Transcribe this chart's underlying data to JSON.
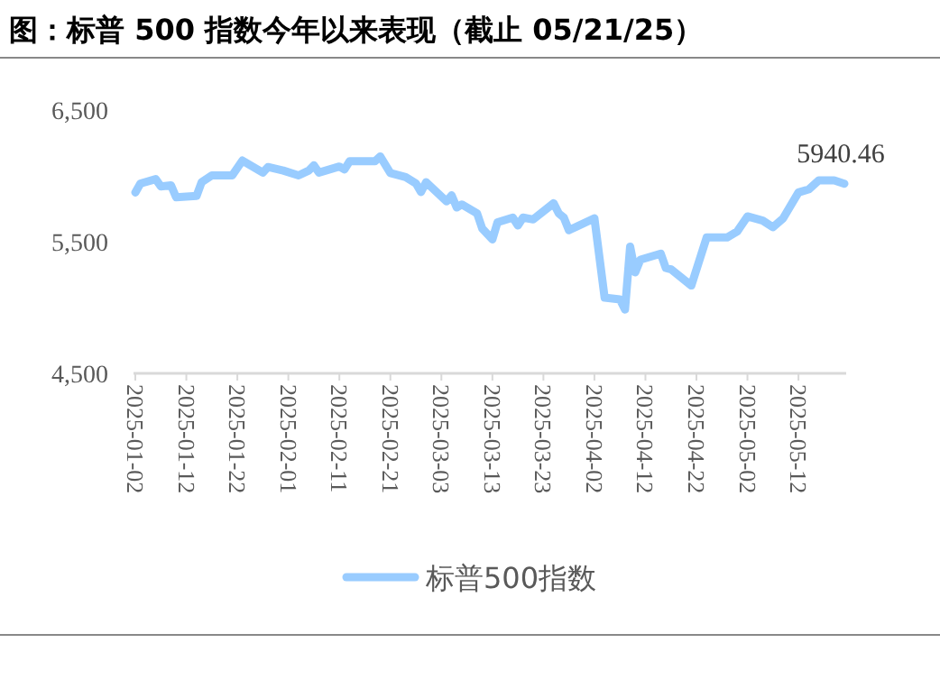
{
  "chart_data": {
    "type": "line",
    "title": "图：标普 500 指数今年以来表现（截止 05/21/25）",
    "x": [
      "2025-01-02",
      "2025-01-03",
      "2025-01-06",
      "2025-01-07",
      "2025-01-09",
      "2025-01-10",
      "2025-01-14",
      "2025-01-15",
      "2025-01-17",
      "2025-01-21",
      "2025-01-23",
      "2025-01-27",
      "2025-01-28",
      "2025-01-31",
      "2025-02-03",
      "2025-02-05",
      "2025-02-06",
      "2025-02-07",
      "2025-02-11",
      "2025-02-12",
      "2025-02-13",
      "2025-02-18",
      "2025-02-19",
      "2025-02-21",
      "2025-02-24",
      "2025-02-26",
      "2025-02-27",
      "2025-02-28",
      "2025-03-04",
      "2025-03-05",
      "2025-03-06",
      "2025-03-07",
      "2025-03-10",
      "2025-03-11",
      "2025-03-13",
      "2025-03-14",
      "2025-03-17",
      "2025-03-18",
      "2025-03-19",
      "2025-03-21",
      "2025-03-25",
      "2025-03-26",
      "2025-03-27",
      "2025-03-28",
      "2025-04-02",
      "2025-04-04",
      "2025-04-07",
      "2025-04-08",
      "2025-04-09",
      "2025-04-10",
      "2025-04-11",
      "2025-04-15",
      "2025-04-16",
      "2025-04-17",
      "2025-04-21",
      "2025-04-24",
      "2025-04-28",
      "2025-04-30",
      "2025-05-02",
      "2025-05-05",
      "2025-05-07",
      "2025-05-09",
      "2025-05-12",
      "2025-05-14",
      "2025-05-16",
      "2025-05-19",
      "2025-05-21"
    ],
    "series": [
      {
        "name": "标普500指数",
        "color": "#99ccff",
        "values": [
          5874,
          5942,
          5975,
          5920,
          5928,
          5838,
          5847,
          5952,
          6003,
          6003,
          6116,
          6025,
          6067,
          6040,
          6003,
          6040,
          6080,
          6025,
          6071,
          6048,
          6111,
          6111,
          6148,
          6021,
          5990,
          5943,
          5877,
          5952,
          5806,
          5852,
          5760,
          5783,
          5715,
          5600,
          5518,
          5647,
          5683,
          5623,
          5683,
          5669,
          5792,
          5715,
          5683,
          5587,
          5678,
          5075,
          5062,
          4984,
          5463,
          5267,
          5363,
          5409,
          5300,
          5291,
          5167,
          5532,
          5532,
          5578,
          5692,
          5660,
          5610,
          5678,
          5874,
          5897,
          5966,
          5966,
          5940.46
        ],
        "value_labels": [
          null,
          null,
          null,
          null,
          null,
          null,
          null,
          null,
          null,
          null,
          null,
          null,
          null,
          null,
          null,
          null,
          null,
          null,
          null,
          null,
          null,
          null,
          null,
          null,
          null,
          null,
          null,
          null,
          null,
          null,
          null,
          null,
          null,
          null,
          null,
          null,
          null,
          null,
          null,
          null,
          null,
          null,
          null,
          null,
          null,
          null,
          null,
          null,
          null,
          null,
          null,
          null,
          null,
          null,
          null,
          null,
          null,
          null,
          null,
          null,
          null,
          null,
          null,
          null,
          null,
          null,
          "5940.46"
        ]
      }
    ],
    "xlim": [
      "2025-01-02",
      "2025-05-21"
    ],
    "xticks": [
      "2025-01-02",
      "2025-01-12",
      "2025-01-22",
      "2025-02-01",
      "2025-02-11",
      "2025-02-21",
      "2025-03-03",
      "2025-03-13",
      "2025-03-23",
      "2025-04-02",
      "2025-04-12",
      "2025-04-22",
      "2025-05-02",
      "2025-05-12"
    ],
    "ylim": [
      4500,
      6500
    ],
    "yticks": [
      {
        "value": 4500,
        "label": "4,500"
      },
      {
        "value": 5500,
        "label": "5,500"
      },
      {
        "value": 6500,
        "label": "6,500"
      }
    ],
    "grid": false,
    "legend": "bottom",
    "marker": "none",
    "line_style": "solid"
  }
}
